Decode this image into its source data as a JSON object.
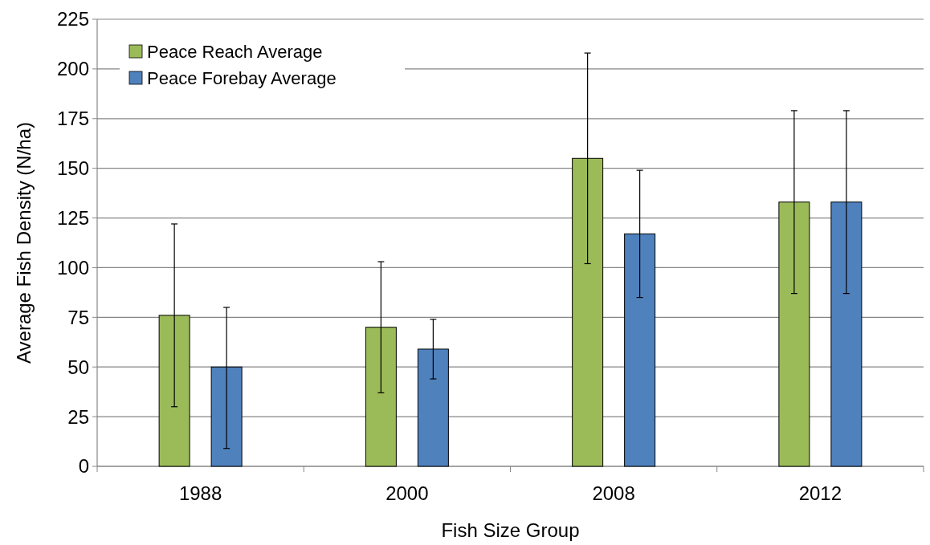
{
  "chart_data": {
    "type": "bar",
    "xlabel": "Fish Size Group",
    "ylabel": "Average Fish Density (N/ha)",
    "categories": [
      "1988",
      "2000",
      "2008",
      "2012"
    ],
    "series": [
      {
        "name": "Peace Reach Average",
        "color": "#9bbb59",
        "values": [
          76,
          70,
          155,
          133
        ],
        "errors": [
          [
            30,
            122
          ],
          [
            37,
            103
          ],
          [
            102,
            208
          ],
          [
            87,
            179
          ]
        ]
      },
      {
        "name": "Peace Forebay Average",
        "color": "#4f81bd",
        "values": [
          50,
          59,
          117,
          133
        ],
        "errors": [
          [
            9,
            80
          ],
          [
            44,
            74
          ],
          [
            85,
            149
          ],
          [
            87,
            179
          ]
        ]
      }
    ],
    "ylim": [
      0,
      225
    ],
    "yticks": [
      0,
      25,
      50,
      75,
      100,
      125,
      150,
      175,
      200,
      225
    ],
    "grid": "y",
    "legend": "top left"
  }
}
